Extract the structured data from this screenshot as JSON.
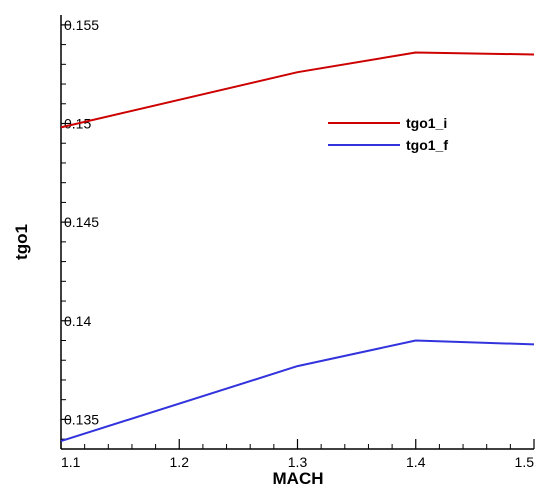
{
  "chart_data": {
    "type": "line",
    "title": "",
    "xlabel": "MACH",
    "ylabel": "tgo1",
    "xlim": [
      1.1,
      1.5
    ],
    "ylim": [
      0.1335,
      0.1555
    ],
    "xticks": [
      1.1,
      1.2,
      1.3,
      1.4,
      1.5
    ],
    "xtick_labels": [
      "1.1",
      "1.2",
      "1.3",
      "1.4",
      "1.5"
    ],
    "yticks": [
      0.135,
      0.14,
      0.145,
      0.15,
      0.155
    ],
    "ytick_labels": [
      "0.135",
      "0.14",
      "0.145",
      "0.15",
      "0.155"
    ],
    "grid": false,
    "legend_position": "top-right",
    "series": [
      {
        "name": "tgo1_i",
        "color": "#cc0000",
        "x": [
          1.1,
          1.3,
          1.4,
          1.5
        ],
        "y": [
          0.1498,
          0.1526,
          0.1536,
          0.1535
        ]
      },
      {
        "name": "tgo1_f",
        "color": "#3333dd",
        "x": [
          1.1,
          1.3,
          1.4,
          1.5
        ],
        "y": [
          0.1339,
          0.1377,
          0.139,
          0.1388
        ]
      }
    ]
  }
}
